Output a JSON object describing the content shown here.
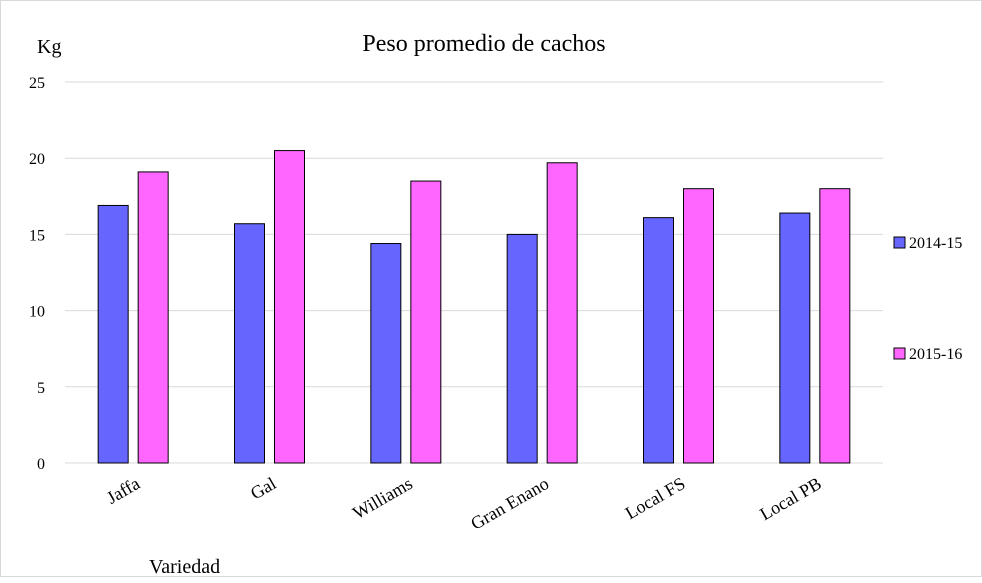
{
  "chart_data": {
    "type": "bar",
    "title": "Peso promedio de cachos",
    "ylabel": "Kg",
    "xlabel": "Variedad",
    "ylim": [
      0,
      25
    ],
    "yticks": [
      0,
      5,
      10,
      15,
      20,
      25
    ],
    "grid": true,
    "legend_position": "right",
    "categories": [
      "Jaffa",
      "Gal",
      "Williams",
      "Gran Enano",
      "Local FS",
      "Local PB"
    ],
    "series": [
      {
        "name": "2014-15",
        "color": "#6666ff",
        "values": [
          16.9,
          15.7,
          14.4,
          15.0,
          16.1,
          16.4
        ]
      },
      {
        "name": "2015-16",
        "color": "#ff66ff",
        "values": [
          19.1,
          20.5,
          18.5,
          19.7,
          18.0,
          18.0
        ]
      }
    ]
  }
}
